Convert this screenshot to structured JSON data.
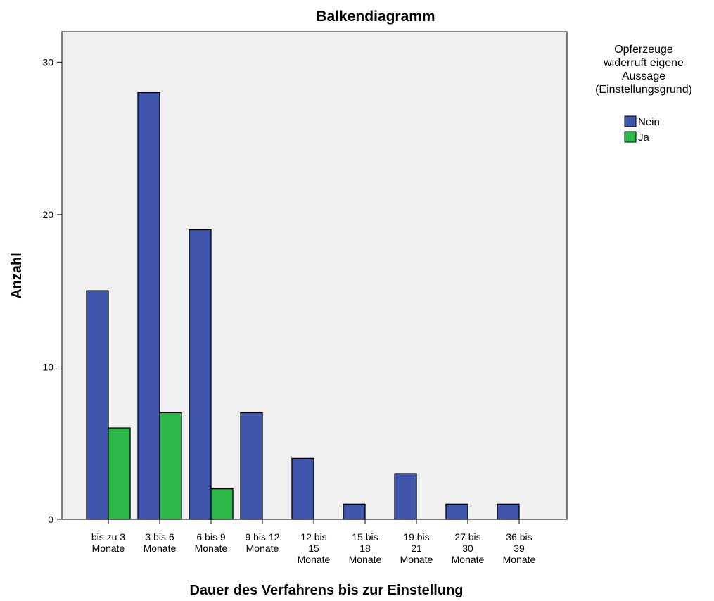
{
  "chart_data": {
    "type": "bar",
    "title": "Balkendiagramm",
    "xlabel": "Dauer des Verfahrens bis zur Einstellung",
    "ylabel": "Anzahl",
    "ylim": [
      0,
      32
    ],
    "yticks": [
      0,
      10,
      20,
      30
    ],
    "grid": false,
    "legend_position": "right",
    "legend_title": [
      "Opferzeuge",
      "widerruft eigene",
      "Aussage",
      "(Einstellungsgrund)"
    ],
    "categories": [
      [
        "bis zu 3",
        "Monate"
      ],
      [
        "3 bis 6",
        "Monate"
      ],
      [
        "6 bis 9",
        "Monate"
      ],
      [
        "9 bis 12",
        "Monate"
      ],
      [
        "12 bis",
        "15",
        "Monate"
      ],
      [
        "15 bis",
        "18",
        "Monate"
      ],
      [
        "19 bis",
        "21",
        "Monate"
      ],
      [
        "27 bis",
        "30",
        "Monate"
      ],
      [
        "36 bis",
        "39",
        "Monate"
      ]
    ],
    "series": [
      {
        "name": "Nein",
        "color": "#3e55ab",
        "values": [
          15,
          28,
          19,
          7,
          4,
          1,
          3,
          1,
          1
        ]
      },
      {
        "name": "Ja",
        "color": "#2db84b",
        "values": [
          6,
          7,
          2,
          0,
          0,
          0,
          0,
          0,
          0
        ]
      }
    ],
    "plot_background": "#f0f0f0"
  }
}
